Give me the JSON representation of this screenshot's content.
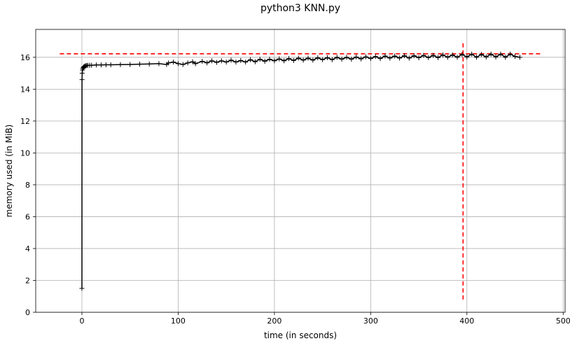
{
  "chart_data": {
    "type": "line",
    "title": "python3 KNN.py",
    "xlabel": "time (in seconds)",
    "ylabel": "memory used (in MiB)",
    "xlim": [
      -48,
      502
    ],
    "ylim": [
      0,
      17.75
    ],
    "xticks": [
      0,
      100,
      200,
      300,
      400,
      500
    ],
    "yticks": [
      0,
      2,
      4,
      6,
      8,
      10,
      12,
      14,
      16
    ],
    "grid": true,
    "series": [
      {
        "color": "#000000",
        "marker": "+",
        "x": [
          0.0,
          0.1,
          0.3,
          0.6,
          1.0,
          1.5,
          2.0,
          2.5,
          3.0,
          4.0,
          5.0,
          6.0,
          8.0,
          10.0,
          15.0,
          20.0,
          25.0,
          30.0,
          40.0,
          50.0,
          60.0,
          70.0,
          80.0,
          88.0,
          90.0,
          95.0,
          100.0,
          105.0,
          110.0,
          115.0,
          118.0,
          125.0,
          130.0,
          135.0,
          140.0,
          145.0,
          150.0,
          155.0,
          160.0,
          165.0,
          170.0,
          175.0,
          180.0,
          185.0,
          190.0,
          195.0,
          200.0,
          205.0,
          210.0,
          215.0,
          220.0,
          225.0,
          230.0,
          235.0,
          240.0,
          245.0,
          250.0,
          255.0,
          260.0,
          265.0,
          270.0,
          275.0,
          280.0,
          285.0,
          290.0,
          295.0,
          300.0,
          305.0,
          310.0,
          315.0,
          320.0,
          325.0,
          330.0,
          335.0,
          340.0,
          345.0,
          350.0,
          355.0,
          360.0,
          365.0,
          370.0,
          375.0,
          380.0,
          385.0,
          390.0,
          395.0,
          400.0,
          405.0,
          410.0,
          415.0,
          420.0,
          425.0,
          430.0,
          435.0,
          440.0,
          445.0,
          450.0,
          455.0
        ],
        "y": [
          1.5,
          14.6,
          15.0,
          15.2,
          15.3,
          15.35,
          15.4,
          15.42,
          15.45,
          15.47,
          15.48,
          15.5,
          15.5,
          15.5,
          15.52,
          15.52,
          15.53,
          15.53,
          15.54,
          15.55,
          15.57,
          15.58,
          15.6,
          15.55,
          15.65,
          15.7,
          15.6,
          15.55,
          15.65,
          15.72,
          15.6,
          15.75,
          15.65,
          15.78,
          15.68,
          15.78,
          15.7,
          15.82,
          15.7,
          15.8,
          15.7,
          15.85,
          15.72,
          15.88,
          15.75,
          15.88,
          15.78,
          15.9,
          15.78,
          15.92,
          15.8,
          15.95,
          15.82,
          15.95,
          15.82,
          15.97,
          15.85,
          15.98,
          15.85,
          16.0,
          15.88,
          16.0,
          15.88,
          16.02,
          15.9,
          16.03,
          15.92,
          16.05,
          15.92,
          16.08,
          15.95,
          16.08,
          15.95,
          16.1,
          15.95,
          16.1,
          15.97,
          16.12,
          15.98,
          16.12,
          15.98,
          16.15,
          16.0,
          16.15,
          16.0,
          16.18,
          16.02,
          16.2,
          16.0,
          16.18,
          16.02,
          16.2,
          16.02,
          16.2,
          16.0,
          16.2,
          16.05,
          16.0
        ]
      }
    ],
    "reference_lines": [
      {
        "orientation": "horizontal",
        "y": 16.22,
        "x_range": [
          -23,
          478
        ],
        "color": "#ff0000",
        "style": "dashed"
      },
      {
        "orientation": "vertical",
        "x": 396,
        "y_range": [
          0.8,
          17.0
        ],
        "color": "#ff0000",
        "style": "dashed"
      }
    ]
  }
}
